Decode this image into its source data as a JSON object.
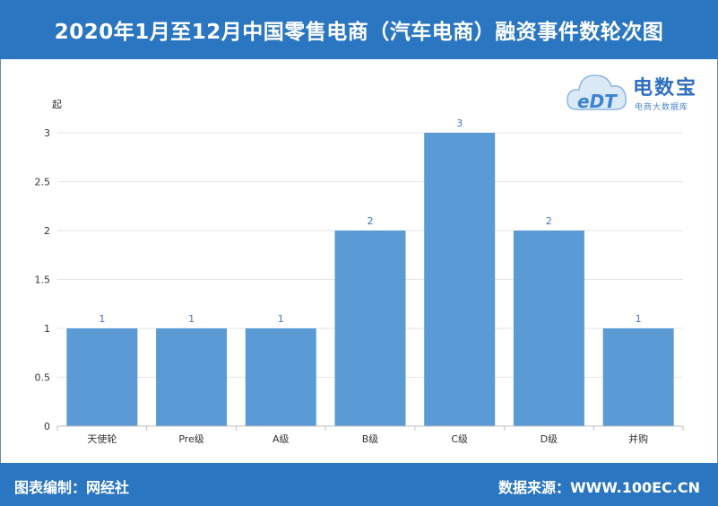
{
  "header": {
    "title": "2020年1月至12月中国零售电商（汽车电商）融资事件数轮次图"
  },
  "logo": {
    "brand": "电数宝",
    "subtitle": "电商大数据库",
    "mark": "eDT"
  },
  "footer": {
    "left": "图表编制：网经社",
    "right": "数据来源：WWW.100EC.CN"
  },
  "colors": {
    "bar": "#5b9bd5",
    "header": "#2b76c0",
    "label": "#4472c4"
  },
  "chart_data": {
    "type": "bar",
    "title": "2020年1月至12月中国零售电商（汽车电商）融资事件数轮次图",
    "ylabel": "起",
    "xlabel": "",
    "categories": [
      "天使轮",
      "Pre级",
      "A级",
      "B级",
      "C级",
      "D级",
      "并购"
    ],
    "values": [
      1,
      1,
      1,
      2,
      3,
      2,
      1
    ],
    "ylim": [
      0,
      3
    ],
    "yticks": [
      "0",
      "0.5",
      "1",
      "1.5",
      "2",
      "2.5",
      "3"
    ],
    "grid": true,
    "data_labels": true
  }
}
